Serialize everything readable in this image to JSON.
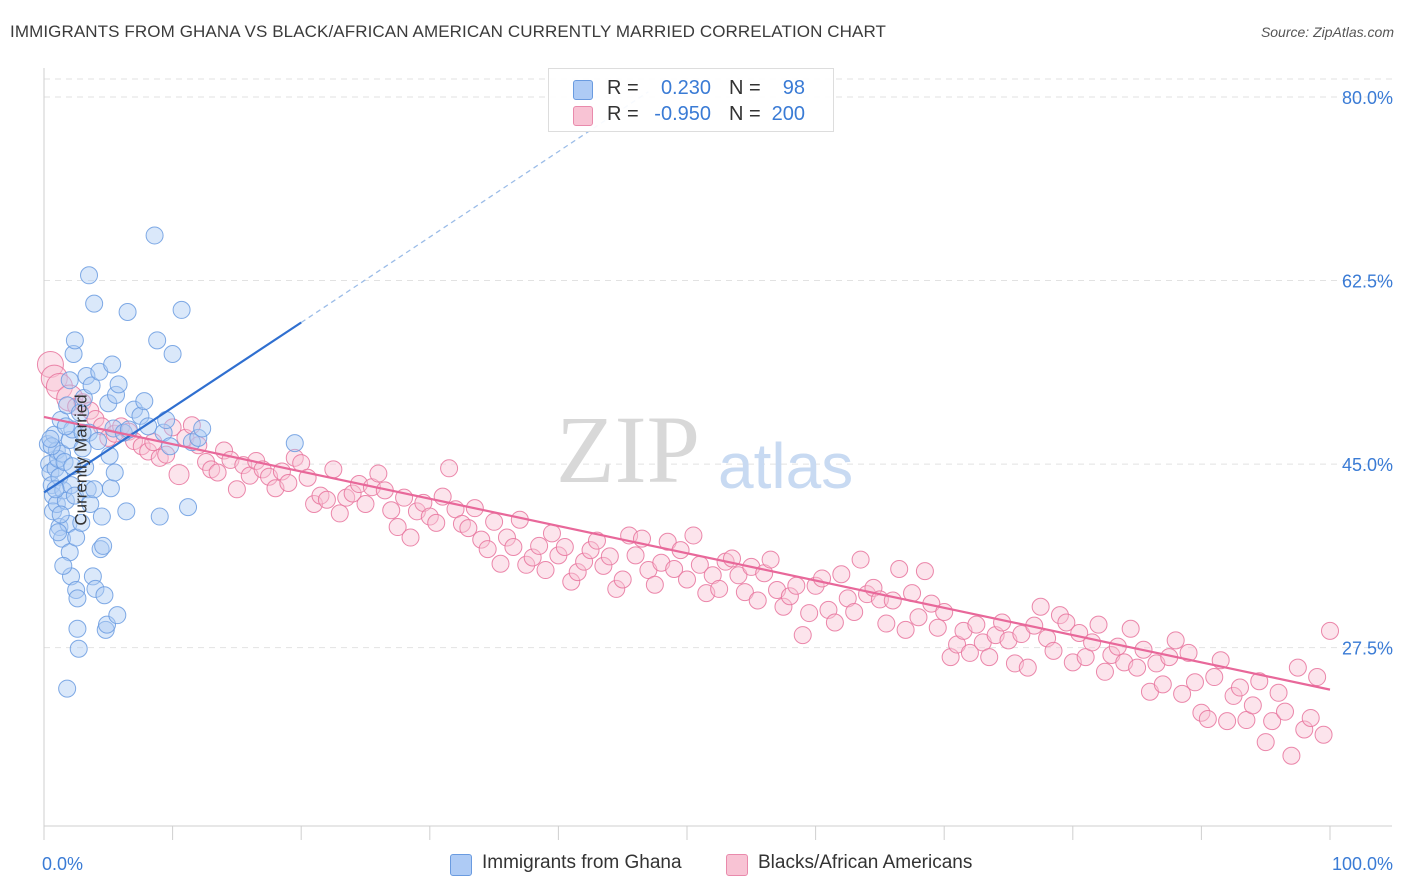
{
  "title": "IMMIGRANTS FROM GHANA VS BLACK/AFRICAN AMERICAN CURRENTLY MARRIED CORRELATION CHART",
  "source": "Source: ZipAtlas.com",
  "watermark": {
    "zip": "ZIP",
    "atlas": "atlas"
  },
  "legend_top": [
    {
      "r_label": "R =",
      "r_value": "0.230",
      "n_label": "N =",
      "n_value": "98",
      "color": "#aecbf5",
      "border": "#6a9be0"
    },
    {
      "r_label": "R =",
      "r_value": "-0.950",
      "n_label": "N =",
      "n_value": "200",
      "color": "#f8c3d4",
      "border": "#e98aac"
    }
  ],
  "legend_bottom": [
    {
      "label": "Immigrants from Ghana",
      "color": "#aecbf5",
      "border": "#6a9be0"
    },
    {
      "label": "Blacks/African Americans",
      "color": "#f8c3d4",
      "border": "#e98aac"
    }
  ],
  "chart_data": {
    "type": "scatter",
    "xlabel": "",
    "ylabel": "Currently Married",
    "xlim": [
      0,
      100
    ],
    "ylim": [
      10.5,
      82
    ],
    "x_tick_labels": [
      "0.0%",
      "100.0%"
    ],
    "y_ticks": [
      27.5,
      45.0,
      62.5,
      80.0
    ],
    "y_tick_labels": [
      "27.5%",
      "45.0%",
      "62.5%",
      "80.0%"
    ],
    "grid": true,
    "series": [
      {
        "name": "Immigrants from Ghana",
        "color": "#6a9be0",
        "fill": "#aecbf5",
        "trend": {
          "x": [
            0,
            20
          ],
          "y": [
            42.3,
            58.5
          ]
        },
        "trend_dashed": {
          "x": [
            20,
            47
          ],
          "y": [
            58.5,
            80.5
          ]
        },
        "points": [
          [
            0.3,
            46.9
          ],
          [
            0.4,
            45.0
          ],
          [
            0.5,
            44.2
          ],
          [
            0.6,
            43.0
          ],
          [
            0.7,
            42.0
          ],
          [
            0.7,
            40.5
          ],
          [
            0.8,
            47.8
          ],
          [
            0.9,
            44.6
          ],
          [
            1.0,
            46.3
          ],
          [
            1.0,
            41.2
          ],
          [
            1.1,
            45.5
          ],
          [
            1.2,
            43.8
          ],
          [
            1.2,
            39.0
          ],
          [
            1.3,
            49.2
          ],
          [
            1.4,
            46.0
          ],
          [
            1.4,
            37.9
          ],
          [
            1.5,
            42.5
          ],
          [
            1.6,
            45.2
          ],
          [
            1.7,
            41.5
          ],
          [
            1.8,
            50.6
          ],
          [
            1.9,
            39.3
          ],
          [
            2.0,
            47.3
          ],
          [
            2.0,
            36.6
          ],
          [
            2.1,
            34.3
          ],
          [
            2.1,
            43.0
          ],
          [
            2.2,
            48.3
          ],
          [
            2.3,
            55.5
          ],
          [
            2.4,
            56.8
          ],
          [
            2.4,
            42.0
          ],
          [
            2.5,
            38.0
          ],
          [
            2.5,
            33.0
          ],
          [
            2.6,
            32.2
          ],
          [
            2.6,
            29.3
          ],
          [
            2.7,
            27.4
          ],
          [
            2.8,
            49.9
          ],
          [
            2.9,
            39.4
          ],
          [
            3.0,
            46.5
          ],
          [
            3.1,
            51.3
          ],
          [
            3.2,
            44.7
          ],
          [
            3.3,
            53.4
          ],
          [
            3.4,
            42.6
          ],
          [
            3.5,
            63.0
          ],
          [
            3.5,
            48.0
          ],
          [
            3.6,
            41.2
          ],
          [
            3.7,
            52.5
          ],
          [
            3.8,
            34.3
          ],
          [
            3.9,
            42.6
          ],
          [
            3.9,
            60.3
          ],
          [
            4.0,
            33.1
          ],
          [
            4.2,
            47.2
          ],
          [
            4.3,
            53.8
          ],
          [
            4.4,
            36.9
          ],
          [
            4.5,
            40.0
          ],
          [
            4.6,
            37.2
          ],
          [
            4.7,
            32.5
          ],
          [
            4.8,
            29.2
          ],
          [
            4.9,
            29.7
          ],
          [
            5.0,
            50.8
          ],
          [
            5.1,
            45.8
          ],
          [
            5.2,
            42.7
          ],
          [
            5.3,
            54.5
          ],
          [
            5.4,
            48.4
          ],
          [
            5.5,
            44.2
          ],
          [
            5.6,
            51.6
          ],
          [
            5.7,
            30.6
          ],
          [
            5.8,
            52.6
          ],
          [
            6.2,
            48.0
          ],
          [
            6.4,
            40.5
          ],
          [
            6.5,
            59.5
          ],
          [
            6.6,
            48.3
          ],
          [
            7.0,
            50.2
          ],
          [
            7.5,
            49.6
          ],
          [
            7.8,
            51.0
          ],
          [
            8.1,
            48.6
          ],
          [
            8.6,
            66.8
          ],
          [
            8.8,
            56.8
          ],
          [
            9.0,
            40.0
          ],
          [
            9.3,
            48.0
          ],
          [
            9.5,
            49.2
          ],
          [
            9.8,
            46.7
          ],
          [
            10.0,
            55.5
          ],
          [
            10.7,
            59.7
          ],
          [
            11.2,
            40.9
          ],
          [
            11.5,
            47.1
          ],
          [
            12.0,
            47.5
          ],
          [
            12.3,
            48.4
          ],
          [
            19.5,
            47.0
          ],
          [
            1.3,
            40.2
          ],
          [
            0.6,
            46.7
          ],
          [
            0.9,
            42.6
          ],
          [
            1.5,
            35.3
          ],
          [
            1.8,
            23.6
          ],
          [
            2.0,
            53.0
          ],
          [
            0.5,
            47.4
          ],
          [
            1.1,
            38.5
          ],
          [
            1.7,
            48.6
          ],
          [
            2.2,
            44.8
          ],
          [
            3.0,
            48.0
          ]
        ]
      },
      {
        "name": "Blacks/African Americans",
        "color": "#e8739c",
        "fill": "#f8c3d4",
        "trend": {
          "x": [
            0,
            100
          ],
          "y": [
            49.5,
            23.5
          ]
        },
        "points": [
          [
            0.5,
            54.5
          ],
          [
            0.8,
            53.2
          ],
          [
            1.2,
            52.4
          ],
          [
            2.0,
            51.3
          ],
          [
            2.5,
            50.5
          ],
          [
            3.0,
            50.9
          ],
          [
            3.6,
            50.1
          ],
          [
            4.0,
            49.3
          ],
          [
            4.5,
            48.6
          ],
          [
            5.0,
            47.5
          ],
          [
            5.5,
            47.9
          ],
          [
            6.0,
            48.6
          ],
          [
            6.6,
            48.1
          ],
          [
            7.0,
            47.2
          ],
          [
            7.6,
            46.7
          ],
          [
            8.1,
            46.2
          ],
          [
            8.5,
            47.1
          ],
          [
            9.0,
            45.6
          ],
          [
            9.5,
            45.9
          ],
          [
            10.0,
            48.5
          ],
          [
            10.5,
            44.0
          ],
          [
            11.0,
            47.5
          ],
          [
            11.5,
            48.7
          ],
          [
            12.0,
            46.8
          ],
          [
            12.6,
            45.2
          ],
          [
            13.0,
            44.5
          ],
          [
            13.5,
            44.2
          ],
          [
            14.0,
            46.3
          ],
          [
            14.5,
            45.4
          ],
          [
            15.0,
            42.6
          ],
          [
            15.5,
            44.9
          ],
          [
            16.0,
            43.9
          ],
          [
            16.5,
            45.3
          ],
          [
            17.0,
            44.5
          ],
          [
            17.5,
            43.8
          ],
          [
            18.0,
            42.7
          ],
          [
            18.5,
            44.3
          ],
          [
            19.0,
            43.2
          ],
          [
            19.5,
            45.6
          ],
          [
            20.0,
            45.1
          ],
          [
            20.5,
            43.7
          ],
          [
            21.0,
            41.2
          ],
          [
            21.5,
            42.0
          ],
          [
            22.0,
            41.6
          ],
          [
            22.5,
            44.5
          ],
          [
            23.0,
            40.3
          ],
          [
            23.5,
            41.8
          ],
          [
            24.0,
            42.2
          ],
          [
            24.5,
            43.1
          ],
          [
            25.0,
            41.2
          ],
          [
            25.5,
            42.8
          ],
          [
            26.0,
            44.1
          ],
          [
            26.5,
            42.5
          ],
          [
            27.0,
            40.6
          ],
          [
            27.5,
            39.0
          ],
          [
            28.0,
            41.8
          ],
          [
            28.5,
            38.0
          ],
          [
            29.0,
            40.5
          ],
          [
            29.5,
            41.3
          ],
          [
            30.0,
            40.0
          ],
          [
            30.5,
            39.4
          ],
          [
            31.0,
            41.9
          ],
          [
            31.5,
            44.6
          ],
          [
            32.0,
            40.7
          ],
          [
            32.5,
            39.3
          ],
          [
            33.0,
            38.9
          ],
          [
            33.5,
            40.8
          ],
          [
            34.0,
            37.8
          ],
          [
            34.5,
            36.9
          ],
          [
            35.0,
            39.5
          ],
          [
            35.5,
            35.5
          ],
          [
            36.0,
            38.0
          ],
          [
            36.5,
            37.1
          ],
          [
            37.0,
            39.7
          ],
          [
            37.5,
            35.4
          ],
          [
            38.0,
            36.1
          ],
          [
            38.5,
            37.2
          ],
          [
            39.0,
            34.9
          ],
          [
            39.5,
            38.4
          ],
          [
            40.0,
            36.3
          ],
          [
            40.5,
            37.1
          ],
          [
            41.0,
            33.8
          ],
          [
            41.5,
            34.7
          ],
          [
            42.0,
            35.7
          ],
          [
            42.5,
            36.8
          ],
          [
            43.0,
            37.7
          ],
          [
            43.5,
            35.3
          ],
          [
            44.0,
            36.2
          ],
          [
            44.5,
            33.1
          ],
          [
            45.0,
            34.0
          ],
          [
            45.5,
            38.2
          ],
          [
            46.0,
            36.3
          ],
          [
            46.5,
            37.9
          ],
          [
            47.0,
            34.9
          ],
          [
            47.5,
            33.5
          ],
          [
            48.0,
            35.6
          ],
          [
            48.5,
            37.6
          ],
          [
            49.0,
            35.0
          ],
          [
            49.5,
            36.8
          ],
          [
            50.0,
            34.0
          ],
          [
            50.5,
            38.2
          ],
          [
            51.0,
            35.4
          ],
          [
            51.5,
            32.7
          ],
          [
            52.0,
            34.4
          ],
          [
            52.5,
            33.1
          ],
          [
            53.0,
            35.7
          ],
          [
            53.5,
            36.0
          ],
          [
            54.0,
            34.4
          ],
          [
            54.5,
            32.8
          ],
          [
            55.0,
            35.2
          ],
          [
            55.5,
            32.0
          ],
          [
            56.0,
            34.6
          ],
          [
            56.5,
            35.9
          ],
          [
            57.0,
            33.0
          ],
          [
            57.5,
            31.4
          ],
          [
            58.0,
            32.4
          ],
          [
            58.5,
            33.4
          ],
          [
            59.0,
            28.7
          ],
          [
            59.5,
            30.8
          ],
          [
            60.0,
            33.4
          ],
          [
            60.5,
            34.1
          ],
          [
            61.0,
            31.1
          ],
          [
            61.5,
            29.9
          ],
          [
            62.0,
            34.5
          ],
          [
            62.5,
            32.2
          ],
          [
            63.0,
            30.9
          ],
          [
            63.5,
            35.9
          ],
          [
            64.0,
            32.6
          ],
          [
            64.5,
            33.2
          ],
          [
            65.0,
            32.1
          ],
          [
            65.5,
            29.8
          ],
          [
            66.0,
            32.0
          ],
          [
            66.5,
            35.0
          ],
          [
            67.0,
            29.2
          ],
          [
            67.5,
            32.7
          ],
          [
            68.0,
            30.4
          ],
          [
            68.5,
            34.8
          ],
          [
            69.0,
            31.7
          ],
          [
            69.5,
            29.4
          ],
          [
            70.0,
            30.9
          ],
          [
            70.5,
            26.6
          ],
          [
            71.0,
            27.8
          ],
          [
            71.5,
            29.1
          ],
          [
            72.0,
            27.0
          ],
          [
            72.5,
            29.7
          ],
          [
            73.0,
            28.0
          ],
          [
            73.5,
            26.6
          ],
          [
            74.0,
            28.7
          ],
          [
            74.5,
            29.9
          ],
          [
            75.0,
            28.2
          ],
          [
            75.5,
            26.0
          ],
          [
            76.0,
            28.8
          ],
          [
            76.5,
            25.6
          ],
          [
            77.0,
            29.6
          ],
          [
            77.5,
            31.4
          ],
          [
            78.0,
            28.4
          ],
          [
            78.5,
            27.2
          ],
          [
            79.0,
            30.6
          ],
          [
            79.5,
            29.9
          ],
          [
            80.0,
            26.1
          ],
          [
            80.5,
            28.9
          ],
          [
            81.0,
            26.6
          ],
          [
            81.5,
            28.0
          ],
          [
            82.0,
            29.7
          ],
          [
            82.5,
            25.2
          ],
          [
            83.0,
            26.8
          ],
          [
            83.5,
            27.6
          ],
          [
            84.0,
            26.1
          ],
          [
            84.5,
            29.3
          ],
          [
            85.0,
            25.6
          ],
          [
            85.5,
            27.3
          ],
          [
            86.0,
            23.3
          ],
          [
            86.5,
            26.0
          ],
          [
            87.0,
            24.0
          ],
          [
            87.5,
            26.6
          ],
          [
            88.0,
            28.2
          ],
          [
            88.5,
            23.1
          ],
          [
            89.0,
            27.0
          ],
          [
            89.5,
            24.2
          ],
          [
            90.0,
            21.3
          ],
          [
            90.5,
            20.7
          ],
          [
            91.0,
            24.7
          ],
          [
            91.5,
            26.3
          ],
          [
            92.0,
            20.5
          ],
          [
            92.5,
            22.9
          ],
          [
            93.0,
            23.7
          ],
          [
            93.5,
            20.6
          ],
          [
            94.0,
            22.0
          ],
          [
            94.5,
            24.3
          ],
          [
            95.0,
            18.5
          ],
          [
            95.5,
            20.5
          ],
          [
            96.0,
            23.2
          ],
          [
            96.5,
            21.4
          ],
          [
            97.0,
            17.2
          ],
          [
            97.5,
            25.6
          ],
          [
            98.0,
            19.7
          ],
          [
            98.5,
            20.8
          ],
          [
            99.0,
            24.7
          ],
          [
            99.5,
            19.2
          ],
          [
            100.0,
            29.1
          ]
        ]
      }
    ]
  }
}
